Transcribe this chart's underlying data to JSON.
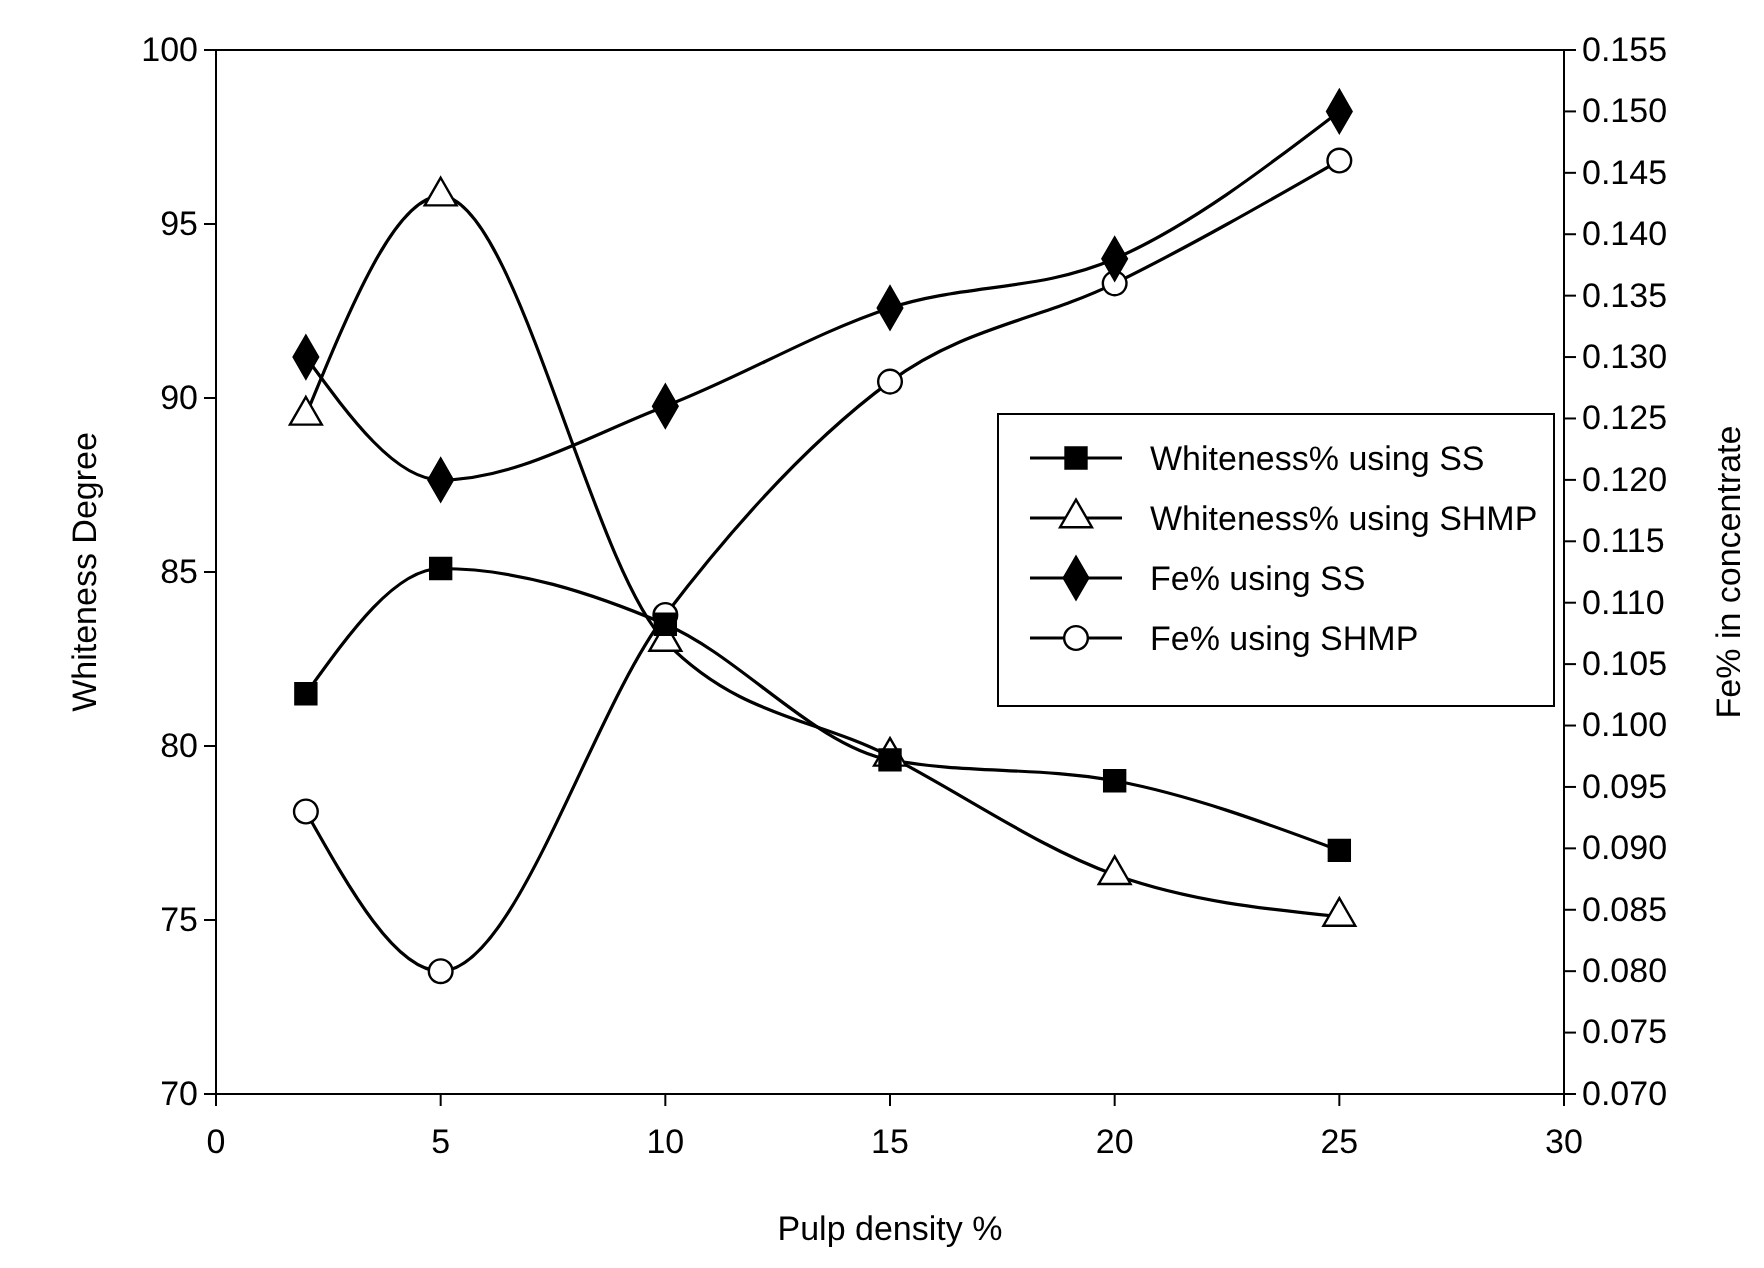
{
  "chart_data": {
    "type": "line",
    "xlabel": "Pulp density %",
    "ylabel": "Whiteness  Degree",
    "y2label": "Fe% in concentrate",
    "x": [
      2,
      5,
      10,
      15,
      20,
      25
    ],
    "xlim": [
      0,
      30
    ],
    "xticks": [
      0,
      5,
      10,
      15,
      20,
      25,
      30
    ],
    "ylim": [
      70,
      100
    ],
    "yticks": [
      70,
      75,
      80,
      85,
      90,
      95,
      100
    ],
    "y2lim": [
      0.07,
      0.155
    ],
    "y2ticks": [
      {
        "value": 0.07,
        "label": "0.070"
      },
      {
        "value": 0.075,
        "label": "0.075"
      },
      {
        "value": 0.08,
        "label": "0.080"
      },
      {
        "value": 0.085,
        "label": "0.085"
      },
      {
        "value": 0.09,
        "label": "0.090"
      },
      {
        "value": 0.095,
        "label": "0.095"
      },
      {
        "value": 0.1,
        "label": "0.100"
      },
      {
        "value": 0.105,
        "label": "0.105"
      },
      {
        "value": 0.11,
        "label": "0.110"
      },
      {
        "value": 0.115,
        "label": "0.115"
      },
      {
        "value": 0.12,
        "label": "0.120"
      },
      {
        "value": 0.125,
        "label": "0.125"
      },
      {
        "value": 0.13,
        "label": "0.130"
      },
      {
        "value": 0.135,
        "label": "0.135"
      },
      {
        "value": 0.14,
        "label": "0.140"
      },
      {
        "value": 0.145,
        "label": "0.145"
      },
      {
        "value": 0.15,
        "label": "0.150"
      },
      {
        "value": 0.155,
        "label": "0.155"
      }
    ],
    "grid": false,
    "legend": "right",
    "line_style": "solid",
    "series": [
      {
        "name": "Whiteness% using SS",
        "color": "#000000",
        "marker": "square",
        "values": [
          81.5,
          85.1,
          83.5,
          79.6,
          79.0,
          77.0
        ]
      },
      {
        "name": "Whiteness% using SHMP",
        "color": "#000000",
        "marker": "triangle",
        "values": [
          89.5,
          95.8,
          83.0,
          79.7,
          76.3,
          75.1
        ]
      },
      {
        "name": "Fe% using SS",
        "color": "#000000",
        "marker": "diamond",
        "axis": "y2",
        "values": [
          0.13,
          0.12,
          0.126,
          0.134,
          0.138,
          0.15
        ]
      },
      {
        "name": "Fe% using SHMP",
        "color": "#000000",
        "marker": "circle",
        "axis": "y2",
        "values": [
          0.093,
          0.08,
          0.109,
          0.128,
          0.136,
          0.146
        ]
      }
    ]
  }
}
